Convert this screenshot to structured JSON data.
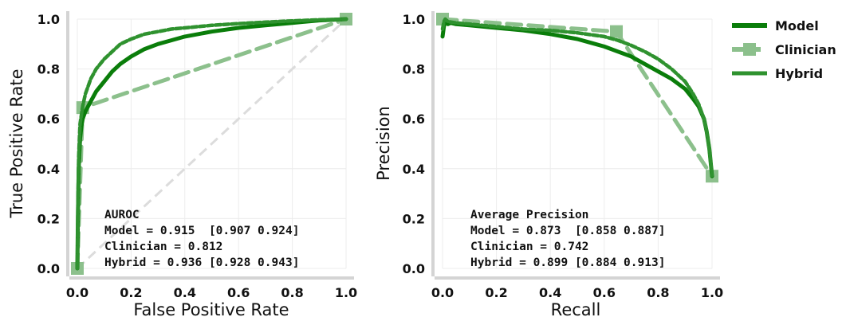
{
  "colors": {
    "model": "#0a7d0a",
    "clinician": "#8cc08c",
    "hybrid": "#2f922f",
    "chance": "#dcdcdc",
    "grid": "#ececec",
    "axis": "#d4d4d4"
  },
  "legend": {
    "placement": "upper-right-outside",
    "entries": [
      {
        "label": "Model",
        "style": "solid"
      },
      {
        "label": "Clinician",
        "style": "dashed-square"
      },
      {
        "label": "Hybrid",
        "style": "solid"
      }
    ]
  },
  "chart_data": [
    {
      "type": "line",
      "xlabel": "False Positive Rate",
      "ylabel": "True Positive Rate",
      "xlim": [
        0,
        1
      ],
      "ylim": [
        0,
        1
      ],
      "xticks": [
        "0.0",
        "0.2",
        "0.4",
        "0.6",
        "0.8",
        "1.0"
      ],
      "yticks": [
        "0.0",
        "0.2",
        "0.4",
        "0.6",
        "0.8",
        "1.0"
      ],
      "grid": true,
      "reference_line": [
        [
          0,
          0
        ],
        [
          1,
          1
        ]
      ],
      "series": [
        {
          "name": "Model",
          "style": "solid",
          "x": [
            0,
            0.002,
            0.005,
            0.01,
            0.015,
            0.02,
            0.03,
            0.04,
            0.05,
            0.07,
            0.1,
            0.13,
            0.16,
            0.2,
            0.25,
            0.3,
            0.35,
            0.4,
            0.5,
            0.6,
            0.7,
            0.8,
            0.9,
            1.0
          ],
          "y": [
            0,
            0.2,
            0.4,
            0.52,
            0.57,
            0.6,
            0.63,
            0.65,
            0.67,
            0.71,
            0.75,
            0.79,
            0.82,
            0.85,
            0.88,
            0.9,
            0.915,
            0.93,
            0.95,
            0.965,
            0.975,
            0.985,
            0.995,
            1.0
          ]
        },
        {
          "name": "Clinician",
          "style": "dashed-square",
          "x": [
            0,
            0.02,
            1.0
          ],
          "y": [
            0,
            0.645,
            1.0
          ]
        },
        {
          "name": "Hybrid",
          "style": "solid",
          "x": [
            0,
            0.002,
            0.005,
            0.01,
            0.02,
            0.03,
            0.05,
            0.07,
            0.1,
            0.13,
            0.16,
            0.2,
            0.25,
            0.3,
            0.35,
            0.4,
            0.5,
            0.6,
            0.7,
            0.8,
            0.9,
            1.0
          ],
          "y": [
            0,
            0.25,
            0.45,
            0.58,
            0.65,
            0.7,
            0.76,
            0.8,
            0.84,
            0.87,
            0.9,
            0.92,
            0.94,
            0.95,
            0.96,
            0.965,
            0.975,
            0.982,
            0.988,
            0.993,
            0.997,
            1.0
          ]
        }
      ],
      "annotation": [
        "AUROC",
        "Model = 0.915  [0.907 0.924]",
        "Clinician = 0.812",
        "Hybrid = 0.936 [0.928 0.943]"
      ]
    },
    {
      "type": "line",
      "xlabel": "Recall",
      "ylabel": "Precision",
      "xlim": [
        0,
        1
      ],
      "ylim": [
        0,
        1
      ],
      "xticks": [
        "0.0",
        "0.2",
        "0.4",
        "0.6",
        "0.8",
        "1.0"
      ],
      "yticks": [
        "0.0",
        "0.2",
        "0.4",
        "0.6",
        "0.8",
        "1.0"
      ],
      "grid": true,
      "series": [
        {
          "name": "Model",
          "style": "solid",
          "x": [
            0,
            0.005,
            0.01,
            0.02,
            0.03,
            0.05,
            0.1,
            0.2,
            0.3,
            0.4,
            0.5,
            0.55,
            0.6,
            0.65,
            0.7,
            0.75,
            0.8,
            0.85,
            0.9,
            0.93,
            0.95,
            0.97,
            0.98,
            0.99,
            1.0
          ],
          "y": [
            0.93,
            0.97,
            0.99,
            0.98,
            0.985,
            0.98,
            0.975,
            0.965,
            0.955,
            0.94,
            0.92,
            0.905,
            0.89,
            0.87,
            0.85,
            0.82,
            0.79,
            0.76,
            0.72,
            0.68,
            0.65,
            0.6,
            0.55,
            0.48,
            0.37
          ]
        },
        {
          "name": "Clinician",
          "style": "dashed-square",
          "x": [
            0,
            0.645,
            1.0
          ],
          "y": [
            1.0,
            0.95,
            0.37
          ]
        },
        {
          "name": "Hybrid",
          "style": "solid",
          "x": [
            0,
            0.005,
            0.01,
            0.02,
            0.05,
            0.1,
            0.2,
            0.3,
            0.4,
            0.5,
            0.6,
            0.65,
            0.7,
            0.75,
            0.8,
            0.85,
            0.9,
            0.93,
            0.95,
            0.97,
            0.98,
            0.99,
            1.0
          ],
          "y": [
            0.96,
            0.99,
            1.0,
            0.99,
            0.985,
            0.98,
            0.97,
            0.96,
            0.955,
            0.945,
            0.93,
            0.915,
            0.895,
            0.87,
            0.84,
            0.8,
            0.75,
            0.7,
            0.66,
            0.6,
            0.55,
            0.48,
            0.37
          ]
        }
      ],
      "annotation": [
        "Average Precision",
        "Model = 0.873  [0.858 0.887]",
        "Clinician = 0.742",
        "Hybrid = 0.899 [0.884 0.913]"
      ]
    }
  ]
}
